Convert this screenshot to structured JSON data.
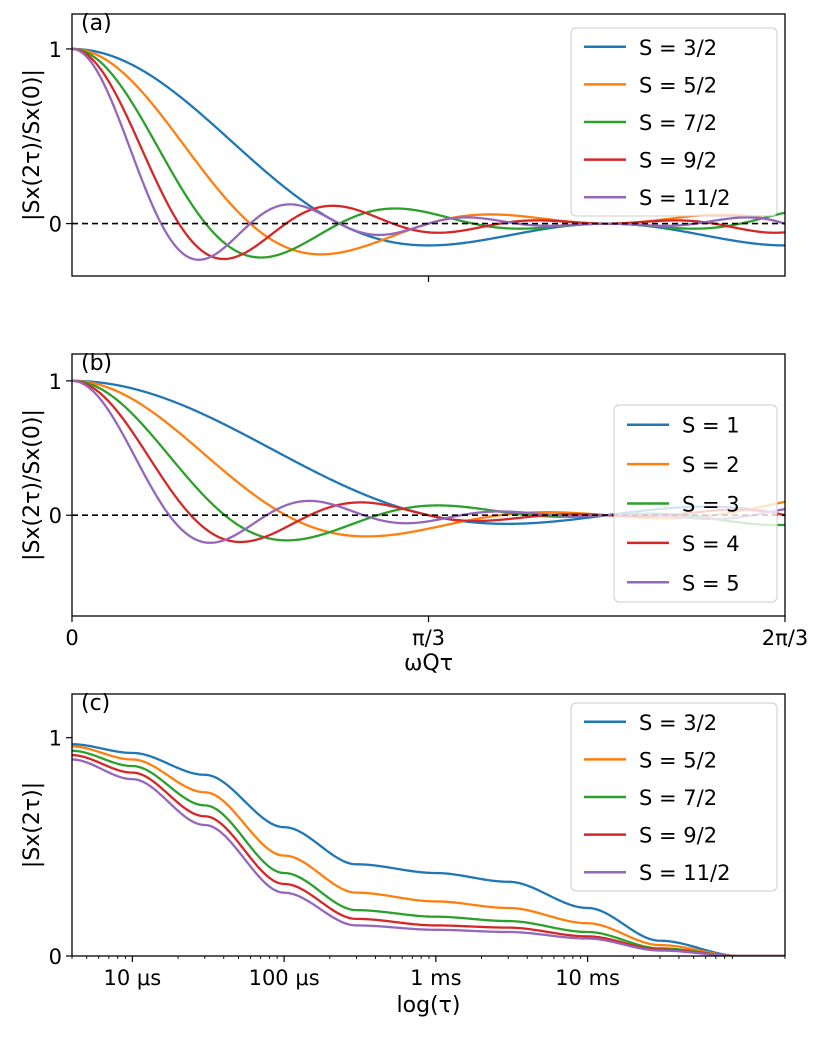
{
  "chart_data": [
    {
      "type": "line",
      "panel_label": "(a)",
      "ylabel": "|Sx(2τ)/Sx(0)|",
      "xlabel": "",
      "xlim": [
        0,
        2.0944
      ],
      "ylim": [
        -0.3,
        1.2
      ],
      "y_ticks": [
        0,
        1
      ],
      "y_tick_labels": [
        "0",
        "1"
      ],
      "x_ticks": [
        1.0472
      ],
      "x_tick_labels": [
        ""
      ],
      "legend_position": "top-right",
      "reference_line": {
        "y": 0,
        "style": "dashed",
        "color": "#000000"
      },
      "series_family": "half-integer spin, Σ cos(ωQτ(2m+1)) over m",
      "series": [
        {
          "name": "S = 3/2",
          "spin": 1.5,
          "color": "#1f77b4"
        },
        {
          "name": "S = 5/2",
          "spin": 2.5,
          "color": "#ff7f0e"
        },
        {
          "name": "S = 7/2",
          "spin": 3.5,
          "color": "#2ca02c"
        },
        {
          "name": "S = 9/2",
          "spin": 4.5,
          "color": "#d62728"
        },
        {
          "name": "S = 11/2",
          "spin": 5.5,
          "color": "#9467bd"
        }
      ]
    },
    {
      "type": "line",
      "panel_label": "(b)",
      "ylabel": "|Sx(2τ)/Sx(0)|",
      "xlabel": "ωQτ",
      "xlim": [
        0,
        2.0944
      ],
      "ylim": [
        -0.75,
        1.2
      ],
      "y_ticks": [
        0,
        1
      ],
      "y_tick_labels": [
        "0",
        "1"
      ],
      "x_ticks": [
        0,
        1.0472,
        2.0944
      ],
      "x_tick_labels": [
        "0",
        "π/3",
        "2π/3"
      ],
      "legend_position": "right",
      "reference_line": {
        "y": 0,
        "style": "dashed",
        "color": "#000000"
      },
      "series_family": "integer spin, Σ cos(ωQτ(2m+1)) over m",
      "series": [
        {
          "name": "S = 1",
          "spin": 1,
          "color": "#1f77b4"
        },
        {
          "name": "S = 2",
          "spin": 2,
          "color": "#ff7f0e"
        },
        {
          "name": "S = 3",
          "spin": 3,
          "color": "#2ca02c"
        },
        {
          "name": "S = 4",
          "spin": 4,
          "color": "#d62728"
        },
        {
          "name": "S = 5",
          "spin": 5,
          "color": "#9467bd"
        }
      ]
    },
    {
      "type": "line",
      "panel_label": "(c)",
      "ylabel": "|Sx(2τ)|",
      "xlabel": "log(τ)",
      "x_scale": "log",
      "xlim_seconds": [
        4e-06,
        0.2
      ],
      "ylim": [
        0,
        1.2
      ],
      "y_ticks": [
        0,
        1
      ],
      "y_tick_labels": [
        "0",
        "1"
      ],
      "x_ticks_seconds": [
        1e-05,
        0.0001,
        0.001,
        0.01
      ],
      "x_tick_labels": [
        "10 μs",
        "100 μs",
        "1 ms",
        "10 ms"
      ],
      "legend_position": "top-right",
      "x_sample_seconds": [
        4e-06,
        1e-05,
        3e-05,
        0.0001,
        0.0003,
        0.001,
        0.003,
        0.01,
        0.03,
        0.1,
        0.2
      ],
      "series": [
        {
          "name": "S = 3/2",
          "color": "#1f77b4",
          "values": [
            0.97,
            0.93,
            0.83,
            0.59,
            0.42,
            0.38,
            0.34,
            0.22,
            0.07,
            0.0,
            0.0
          ]
        },
        {
          "name": "S = 5/2",
          "color": "#ff7f0e",
          "values": [
            0.96,
            0.9,
            0.75,
            0.46,
            0.29,
            0.25,
            0.22,
            0.15,
            0.05,
            0.0,
            0.0
          ]
        },
        {
          "name": "S = 7/2",
          "color": "#2ca02c",
          "values": [
            0.94,
            0.87,
            0.69,
            0.38,
            0.21,
            0.18,
            0.16,
            0.11,
            0.035,
            0.0,
            0.0
          ]
        },
        {
          "name": "S = 9/2",
          "color": "#d62728",
          "values": [
            0.92,
            0.84,
            0.64,
            0.33,
            0.17,
            0.14,
            0.13,
            0.09,
            0.03,
            0.0,
            0.0
          ]
        },
        {
          "name": "S = 11/2",
          "color": "#9467bd",
          "values": [
            0.9,
            0.81,
            0.6,
            0.29,
            0.14,
            0.12,
            0.11,
            0.08,
            0.025,
            0.0,
            0.0
          ]
        }
      ]
    }
  ]
}
